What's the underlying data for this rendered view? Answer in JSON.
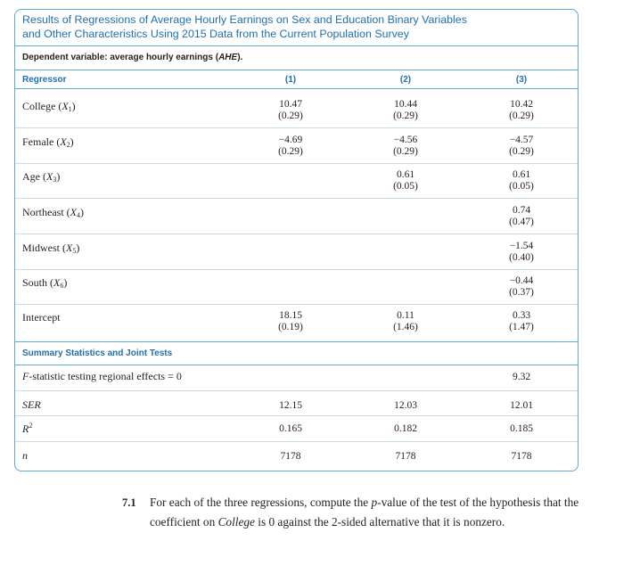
{
  "table": {
    "title_line1": "Results of Regressions of Average Hourly Earnings on Sex and Education Binary Variables",
    "title_line2": "and Other Characteristics Using 2015 Data from the Current Population Survey",
    "dependent_prefix": "Dependent variable: average hourly earnings (",
    "dependent_abbrev": "AHE",
    "dependent_suffix": ").",
    "headers": {
      "regressor": "Regressor",
      "col1": "(1)",
      "col2": "(2)",
      "col3": "(3)"
    },
    "rows": [
      {
        "name": "College",
        "var": "X",
        "sub": "1",
        "c1": "10.47",
        "c1se": "(0.29)",
        "c2": "10.44",
        "c2se": "(0.29)",
        "c3": "10.42",
        "c3se": "(0.29)"
      },
      {
        "name": "Female",
        "var": "X",
        "sub": "2",
        "c1": "−4.69",
        "c1se": "(0.29)",
        "c2": "−4.56",
        "c2se": "(0.29)",
        "c3": "−4.57",
        "c3se": "(0.29)"
      },
      {
        "name": "Age",
        "var": "X",
        "sub": "3",
        "c1": "",
        "c1se": "",
        "c2": "0.61",
        "c2se": "(0.05)",
        "c3": "0.61",
        "c3se": "(0.05)"
      },
      {
        "name": "Northeast",
        "var": "X",
        "sub": "4",
        "c1": "",
        "c1se": "",
        "c2": "",
        "c2se": "",
        "c3": "0.74",
        "c3se": "(0.47)"
      },
      {
        "name": "Midwest",
        "var": "X",
        "sub": "5",
        "c1": "",
        "c1se": "",
        "c2": "",
        "c2se": "",
        "c3": "−1.54",
        "c3se": "(0.40)"
      },
      {
        "name": "South",
        "var": "X",
        "sub": "6",
        "c1": "",
        "c1se": "",
        "c2": "",
        "c2se": "",
        "c3": "−0.44",
        "c3se": "(0.37)"
      },
      {
        "name": "Intercept",
        "var": "",
        "sub": "",
        "c1": "18.15",
        "c1se": "(0.19)",
        "c2": "0.11",
        "c2se": "(1.46)",
        "c3": "0.33",
        "c3se": "(1.47)"
      }
    ],
    "summary_header": "Summary Statistics and Joint Tests",
    "summary": [
      {
        "label_italic": "F",
        "label_rest": "-statistic testing regional effects = 0",
        "c1": "",
        "c2": "",
        "c3": "9.32"
      },
      {
        "label_italic": "SER",
        "label_rest": "",
        "c1": "12.15",
        "c2": "12.03",
        "c3": "12.01"
      },
      {
        "label_italic": "R",
        "label_rest": "",
        "label_sup": "2",
        "c1": "0.165",
        "c2": "0.182",
        "c3": "0.185"
      },
      {
        "label_italic": "n",
        "label_rest": "",
        "c1": "7178",
        "c2": "7178",
        "c3": "7178"
      }
    ]
  },
  "exercise": {
    "number": "7.1",
    "text_a": "For each of the three regressions, compute the ",
    "p_italic": "p",
    "text_b": "-value of the test of the hypothesis that the coefficient on ",
    "college_italic": "College",
    "text_c": " is 0 against the 2-sided alternative that it is nonzero."
  },
  "colors": {
    "accent": "#1f6fae",
    "border": "#5aa9d6",
    "text": "#231f20"
  }
}
